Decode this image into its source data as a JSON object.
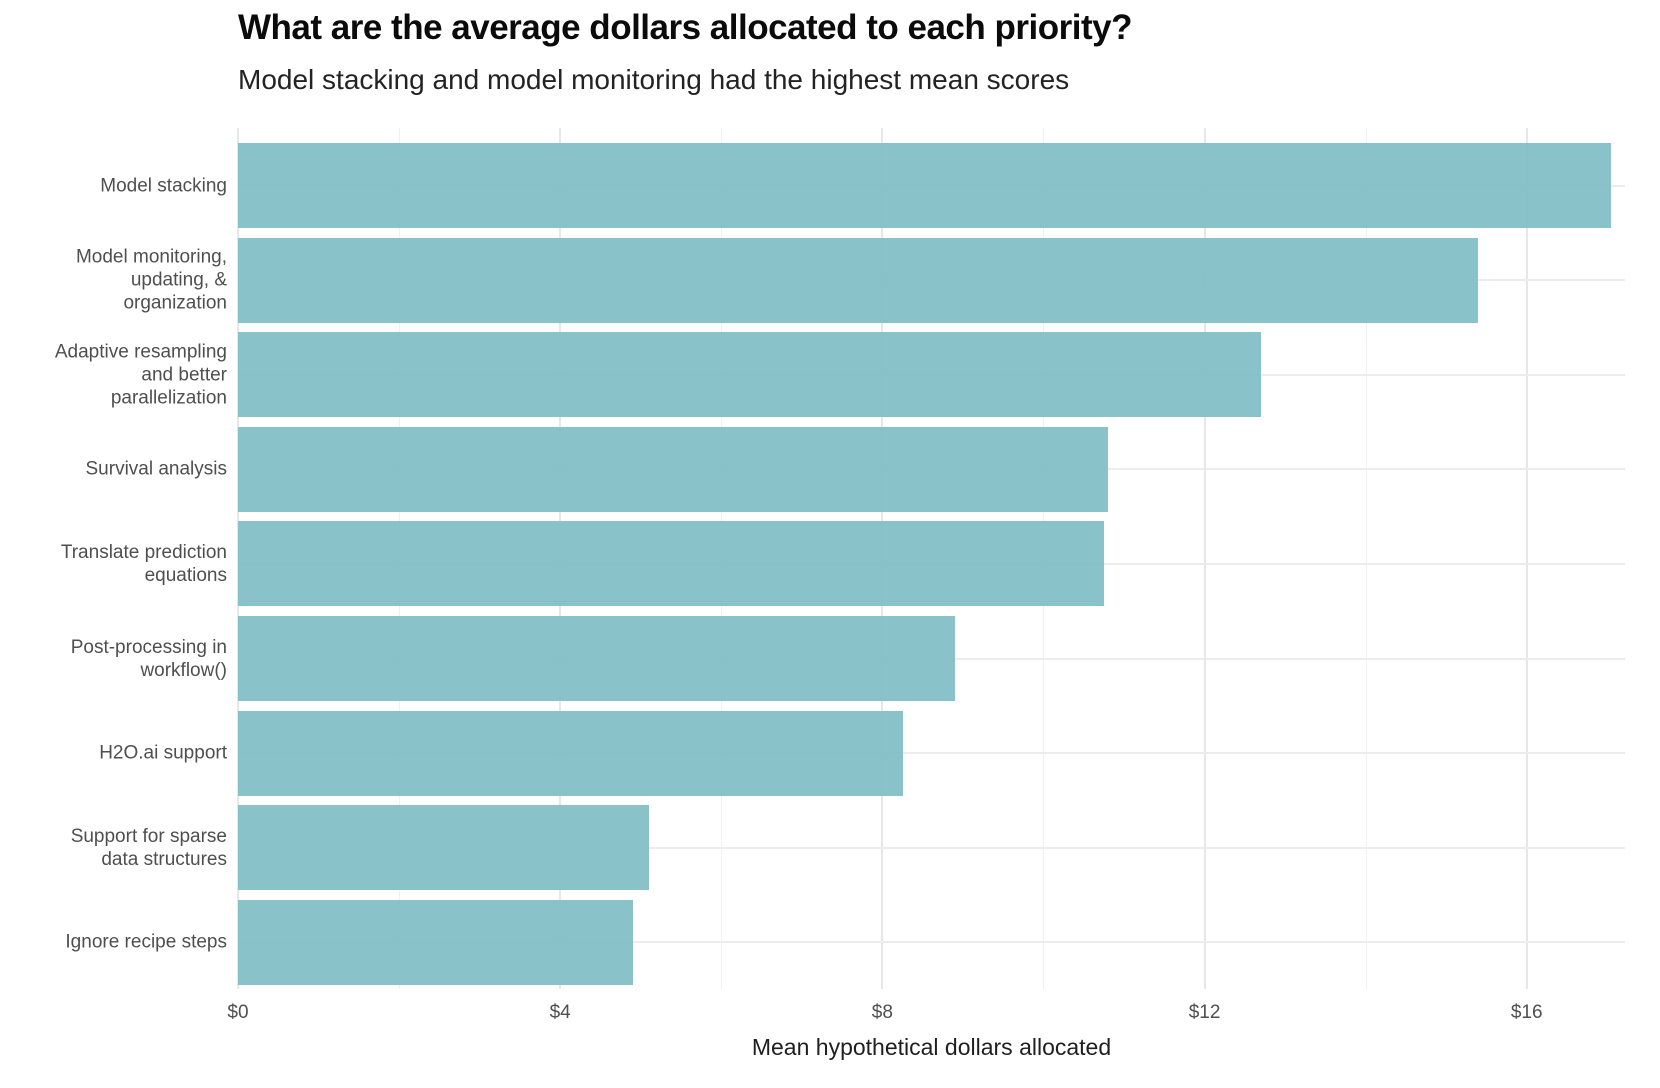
{
  "chart_data": {
    "type": "bar",
    "orientation": "horizontal",
    "title": "What are the average dollars allocated to each priority?",
    "subtitle": "Model stacking and model monitoring had the highest mean scores",
    "xlabel": "Mean hypothetical dollars allocated",
    "categories": [
      "Model stacking",
      "Model monitoring,\nupdating, &\norganization",
      "Adaptive resampling\nand better\nparallelization",
      "Survival analysis",
      "Translate prediction\nequations",
      "Post-processing in\nworkflow()",
      "H2O.ai support",
      "Support for sparse\ndata structures",
      "Ignore recipe steps"
    ],
    "values": [
      17.05,
      15.4,
      12.7,
      10.8,
      10.75,
      8.9,
      8.25,
      5.1,
      4.9
    ],
    "x_ticks": [
      {
        "value": 0,
        "label": "$0"
      },
      {
        "value": 4,
        "label": "$4"
      },
      {
        "value": 8,
        "label": "$8"
      },
      {
        "value": 12,
        "label": "$12"
      },
      {
        "value": 16,
        "label": "$16"
      }
    ],
    "x_minor_ticks": [
      2,
      6,
      10,
      14
    ],
    "xlim": [
      0,
      17.22
    ],
    "grid": "on",
    "legend": "none",
    "bar_color": "#81bdc5",
    "bar_opacity": 0.93,
    "background_color": "#ffffff",
    "major_grid_color": "#e7e7e7",
    "minor_grid_color": "#f0f0f0",
    "label_color": "#4f4f4f",
    "title_color": "#0b0b0b"
  }
}
